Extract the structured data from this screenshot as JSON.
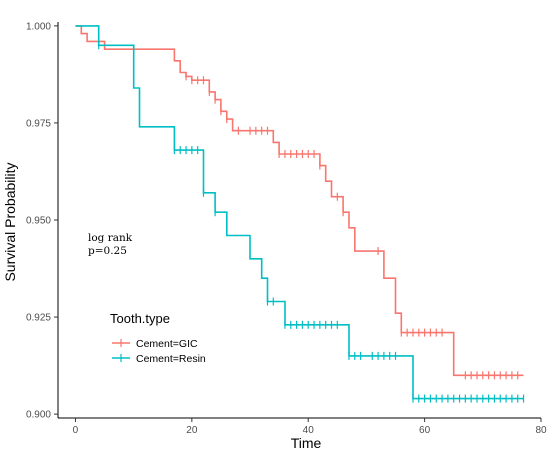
{
  "chart_data": {
    "type": "line",
    "subtype": "kaplan-meier-step",
    "xlabel": "Time",
    "ylabel": "Survival Probability",
    "xlim": [
      -3,
      80
    ],
    "ylim": [
      0.899,
      1.001
    ],
    "x_ticks": [
      0,
      20,
      40,
      60,
      80
    ],
    "y_ticks": [
      0.9,
      0.925,
      0.95,
      0.975,
      1.0
    ],
    "x_tick_labels": [
      "0",
      "20",
      "40",
      "60",
      "80"
    ],
    "y_tick_labels": [
      "0.900",
      "0.925",
      "0.950",
      "0.975",
      "1.000"
    ],
    "grid": false,
    "legend": {
      "title": "Tooth.type",
      "placement": "bottom-left-inside"
    },
    "annotation": {
      "line1": "log rank",
      "line2": "p=0.25"
    },
    "series": [
      {
        "name": "Cement=GIC",
        "color": "#F8766D",
        "steps": [
          [
            0,
            1.0
          ],
          [
            1,
            0.998
          ],
          [
            2,
            0.996
          ],
          [
            5,
            0.994
          ],
          [
            17,
            0.991
          ],
          [
            18,
            0.988
          ],
          [
            19,
            0.987
          ],
          [
            20,
            0.986
          ],
          [
            23,
            0.983
          ],
          [
            24,
            0.981
          ],
          [
            25,
            0.978
          ],
          [
            26,
            0.976
          ],
          [
            27,
            0.973
          ],
          [
            34,
            0.97
          ],
          [
            35,
            0.967
          ],
          [
            42,
            0.964
          ],
          [
            43,
            0.96
          ],
          [
            44,
            0.956
          ],
          [
            46,
            0.952
          ],
          [
            47,
            0.948
          ],
          [
            48,
            0.942
          ],
          [
            53,
            0.935
          ],
          [
            55,
            0.926
          ],
          [
            56,
            0.921
          ],
          [
            65,
            0.91
          ],
          [
            77,
            0.91
          ]
        ],
        "censored": [
          19,
          20,
          21,
          22,
          23,
          24,
          25,
          26,
          28,
          30,
          31,
          32,
          33,
          35,
          36,
          37,
          38,
          39,
          40,
          41,
          42,
          45,
          46,
          52,
          56,
          57,
          58,
          59,
          60,
          61,
          62,
          63,
          67,
          68,
          69,
          70,
          71,
          72,
          73,
          74,
          75,
          76
        ]
      },
      {
        "name": "Cement=Resin",
        "color": "#00BFC4",
        "steps": [
          [
            0,
            1.0
          ],
          [
            4,
            0.995
          ],
          [
            10,
            0.984
          ],
          [
            11,
            0.974
          ],
          [
            17,
            0.968
          ],
          [
            22,
            0.957
          ],
          [
            24,
            0.952
          ],
          [
            26,
            0.946
          ],
          [
            30,
            0.94
          ],
          [
            32,
            0.935
          ],
          [
            33,
            0.929
          ],
          [
            36,
            0.923
          ],
          [
            47,
            0.915
          ],
          [
            58,
            0.904
          ],
          [
            77,
            0.904
          ]
        ],
        "censored": [
          4,
          17,
          18,
          19,
          20,
          21,
          22,
          24,
          33,
          34,
          36,
          37,
          38,
          39,
          40,
          41,
          42,
          43,
          44,
          45,
          47,
          48,
          49,
          51,
          52,
          53,
          54,
          55,
          58,
          59,
          60,
          61,
          62,
          63,
          64,
          65,
          66,
          67,
          68,
          69,
          70,
          71,
          72,
          73,
          74,
          75,
          76,
          77
        ]
      }
    ]
  }
}
